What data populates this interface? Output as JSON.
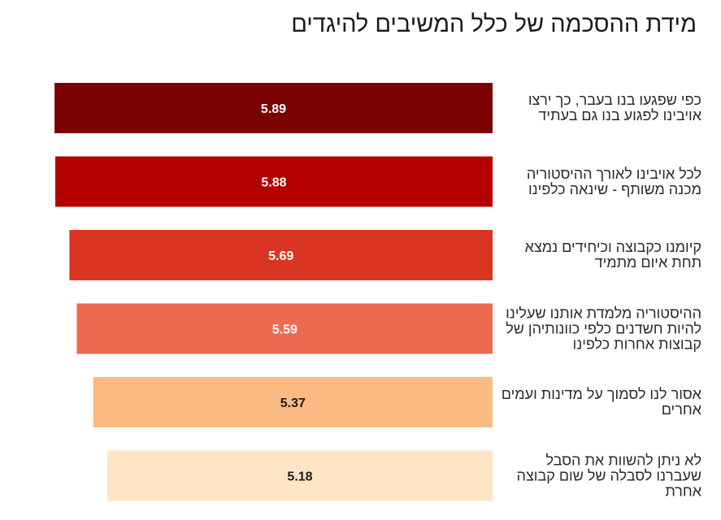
{
  "title": "מידת ההסכמה של כלל המשיבים להיגדים",
  "chart_data": {
    "type": "bar",
    "orientation": "horizontal",
    "title": "מידת ההסכמה של כלל המשיבים להיגדים",
    "categories": [
      "כפי שפגעו בנו בעבר, כך ירצו אויבינו לפגוע בנו גם בעתיד",
      "לכל אויבינו לאורך ההיסטוריה מכנה משותף - שינאה כלפינו",
      "קיומנו כקבוצה וכיחידים נמצא תחת איום מתמיד",
      "ההיסטוריה מלמדת אותנו שעלינו להיות חשדנים כלפי כוונותיהן של קבוצות אחרות כלפינו",
      "אסור לנו לסמוך על מדינות ועמים אחרים",
      "לא ניתן להשוות את הסבל שעברנו לסבלה של שום קבוצה אחרת"
    ],
    "values": [
      5.89,
      5.88,
      5.69,
      5.59,
      5.37,
      5.18
    ],
    "value_labels": [
      "5.89",
      "5.88",
      "5.69",
      "5.59",
      "5.37",
      "5.18"
    ],
    "colors": [
      "#7b0000",
      "#b50000",
      "#d93522",
      "#ee6a4e",
      "#fbbb83",
      "#fde5c6"
    ],
    "value_label_colors": [
      "#ffffff",
      "#ffffff",
      "#ffffff",
      "#ffffff",
      "#1a1a1a",
      "#1a1a1a"
    ],
    "direction": "right-to-left",
    "label_position": "right",
    "grid": false,
    "legend": "none"
  }
}
